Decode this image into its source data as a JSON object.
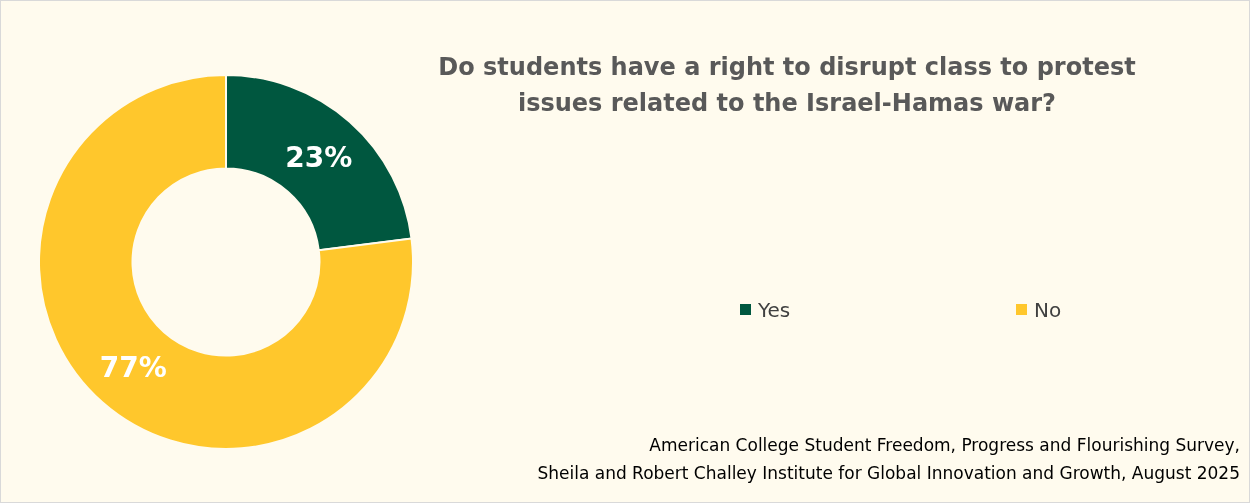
{
  "chart_data": {
    "type": "donut",
    "title": "Do students have a right to disrupt class to protest issues related to the Israel-Hamas war?",
    "categories": [
      "Yes",
      "No"
    ],
    "values": [
      23,
      77
    ],
    "colors": [
      "#00573f",
      "#ffc72c"
    ],
    "value_labels": [
      "23%",
      "77%"
    ],
    "legend": "right",
    "annotations": [
      "American College Student Freedom, Progress and Flourishing Survey,",
      "Sheila and Robert Challey Institute for Global Innovation and Growth, August 2025"
    ]
  }
}
